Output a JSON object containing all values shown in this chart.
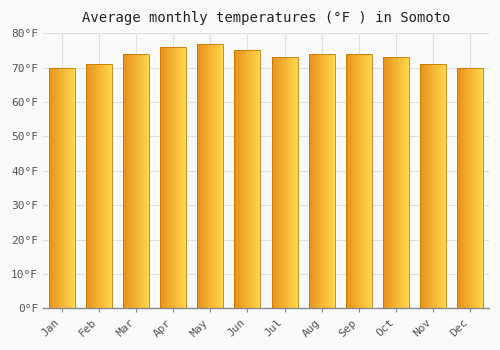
{
  "title": "Average monthly temperatures (°F ) in Somoto",
  "months": [
    "Jan",
    "Feb",
    "Mar",
    "Apr",
    "May",
    "Jun",
    "Jul",
    "Aug",
    "Sep",
    "Oct",
    "Nov",
    "Dec"
  ],
  "values": [
    70,
    71,
    74,
    76,
    77,
    75,
    73,
    74,
    74,
    73,
    71,
    70
  ],
  "ylim": [
    0,
    80
  ],
  "yticks": [
    0,
    10,
    20,
    30,
    40,
    50,
    60,
    70,
    80
  ],
  "bar_color_left": "#E8901A",
  "bar_color_mid": "#F5B830",
  "bar_color_right": "#FFD84D",
  "background_color": "#FAFAFA",
  "plot_bg_color": "#FAFAFA",
  "grid_color": "#E0E0E0",
  "title_fontsize": 10,
  "tick_fontsize": 8,
  "bar_width": 0.7
}
